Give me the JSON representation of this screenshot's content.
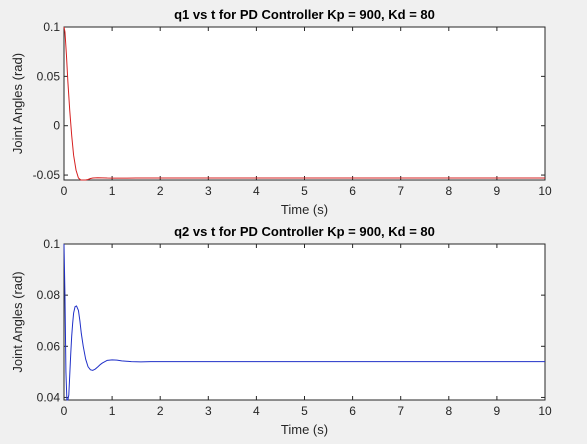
{
  "chart_data": [
    {
      "type": "line",
      "title": "q1 vs t for PD Controller Kp = 900, Kd = 80",
      "xlabel": "Time (s)",
      "ylabel": "Joint Angles (rad)",
      "xlim": [
        0,
        10
      ],
      "ylim": [
        -0.055,
        0.1
      ],
      "xticks": [
        0,
        1,
        2,
        3,
        4,
        5,
        6,
        7,
        8,
        9,
        10
      ],
      "yticks": [
        -0.05,
        0,
        0.05,
        0.1
      ],
      "ytick_labels": [
        "-0.05",
        "0",
        "0.05",
        "0.1"
      ],
      "grid": false,
      "color": "#d62020",
      "series": [
        {
          "x": [
            0,
            0.02,
            0.05,
            0.08,
            0.12,
            0.16,
            0.2,
            0.25,
            0.3,
            0.35,
            0.4,
            0.45,
            0.5,
            0.55,
            0.6,
            0.7,
            0.8,
            0.9,
            1.0,
            1.2,
            1.5,
            2,
            3,
            4,
            5,
            6,
            7,
            8,
            9,
            10
          ],
          "values": [
            0.1,
            0.095,
            0.072,
            0.045,
            0.015,
            -0.01,
            -0.03,
            -0.045,
            -0.053,
            -0.056,
            -0.056,
            -0.0555,
            -0.0545,
            -0.0535,
            -0.053,
            -0.0527,
            -0.0528,
            -0.053,
            -0.0531,
            -0.0531,
            -0.053,
            -0.053,
            -0.053,
            -0.053,
            -0.053,
            -0.053,
            -0.053,
            -0.053,
            -0.053,
            -0.053
          ]
        }
      ]
    },
    {
      "type": "line",
      "title": "q2 vs t for PD Controller Kp = 900, Kd = 80",
      "xlabel": "Time (s)",
      "ylabel": "Joint Angles (rad)",
      "xlim": [
        0,
        10
      ],
      "ylim": [
        0.039,
        0.1
      ],
      "xticks": [
        0,
        1,
        2,
        3,
        4,
        5,
        6,
        7,
        8,
        9,
        10
      ],
      "yticks": [
        0.04,
        0.06,
        0.08,
        0.1
      ],
      "ytick_labels": [
        "0.04",
        "0.06",
        "0.08",
        "0.1"
      ],
      "grid": false,
      "color": "#2030c8",
      "series": [
        {
          "x": [
            0,
            0.02,
            0.04,
            0.06,
            0.08,
            0.1,
            0.12,
            0.14,
            0.16,
            0.18,
            0.2,
            0.23,
            0.26,
            0.3,
            0.33,
            0.36,
            0.4,
            0.45,
            0.5,
            0.55,
            0.6,
            0.65,
            0.7,
            0.75,
            0.8,
            0.9,
            1.0,
            1.1,
            1.2,
            1.4,
            1.6,
            1.8,
            2,
            3,
            4,
            5,
            6,
            7,
            8,
            9,
            10
          ],
          "values": [
            0.1,
            0.08,
            0.05,
            0.038,
            0.037,
            0.041,
            0.049,
            0.057,
            0.064,
            0.069,
            0.073,
            0.0755,
            0.0758,
            0.074,
            0.07,
            0.065,
            0.06,
            0.055,
            0.052,
            0.0508,
            0.0506,
            0.0511,
            0.0519,
            0.0528,
            0.0535,
            0.0545,
            0.0547,
            0.0546,
            0.0543,
            0.054,
            0.0539,
            0.054,
            0.054,
            0.054,
            0.054,
            0.054,
            0.054,
            0.054,
            0.054,
            0.054,
            0.054
          ]
        }
      ]
    }
  ]
}
